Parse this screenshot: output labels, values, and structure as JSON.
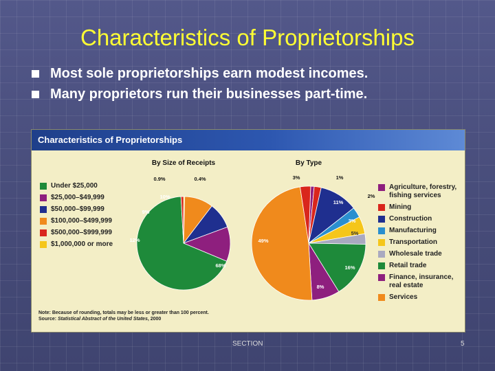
{
  "slide": {
    "title": "Characteristics of Proprietorships",
    "bullets": [
      "Most sole proprietorships earn modest incomes.",
      "Many proprietors run their businesses part-time."
    ],
    "footer_section": "SECTION",
    "footer_page": "5"
  },
  "figure": {
    "title": "Characteristics of Proprietorships",
    "note_line1": "Note: Because of rounding, totals may be less or greater than 100 percent.",
    "note_source_prefix": "Source: ",
    "note_source_title": "Statistical Abstract of the United States",
    "note_source_suffix": ", 2000"
  },
  "chart_data": [
    {
      "type": "pie",
      "title": "By Size of Receipts",
      "slices": [
        {
          "label": "Under $25,000",
          "value": 68,
          "display": "68%",
          "color": "#1e8a3a"
        },
        {
          "label": "$25,000–$49,999",
          "value": 12,
          "display": "12%",
          "color": "#8e1f7e"
        },
        {
          "label": "$50,000–$99,999",
          "value": 9,
          "display": "9%",
          "color": "#1f2f8f"
        },
        {
          "label": "$100,000–$499,999",
          "value": 10,
          "display": "10%",
          "color": "#f08a1c"
        },
        {
          "label": "$500,000–$999,999",
          "value": 0.9,
          "display": "0.9%",
          "color": "#d9261c"
        },
        {
          "label": "$1,000,000 or more",
          "value": 0.4,
          "display": "0.4%",
          "color": "#f5c61a"
        }
      ]
    },
    {
      "type": "pie",
      "title": "By Type",
      "slices": [
        {
          "label": "Agriculture, forestry, fishing services",
          "value": 1,
          "display": "1%",
          "color": "#8e1f7e"
        },
        {
          "label": "Mining",
          "value": 2,
          "display": "2%",
          "color": "#d9261c"
        },
        {
          "label": "Construction",
          "value": 11,
          "display": "11%",
          "color": "#1f2f8f"
        },
        {
          "label": "Manufacturing",
          "value": 3,
          "display": "3%",
          "color": "#2a8fcf"
        },
        {
          "label": "Transportation",
          "value": 5,
          "display": "5%",
          "color": "#f5c61a"
        },
        {
          "label": "Wholesale trade",
          "value": 3,
          "display": "3%",
          "color": "#a9a9c0"
        },
        {
          "label": "Retail trade",
          "value": 16,
          "display": "16%",
          "color": "#1e8a3a"
        },
        {
          "label": "Finance, insurance, real estate",
          "value": 8,
          "display": "8%",
          "color": "#8e1f7e"
        },
        {
          "label": "Services",
          "value": 49,
          "display": "49%",
          "color": "#f08a1c"
        },
        {
          "label": "",
          "value": 3,
          "display": "3%",
          "color": "#d9261c"
        }
      ]
    }
  ],
  "legend_left": [
    {
      "label": "Under $25,000",
      "color": "#1e8a3a"
    },
    {
      "label": "$25,000–$49,999",
      "color": "#8e1f7e"
    },
    {
      "label": "$50,000–$99,999",
      "color": "#1f2f8f"
    },
    {
      "label": "$100,000–$499,999",
      "color": "#f08a1c"
    },
    {
      "label": "$500,000–$999,999",
      "color": "#d9261c"
    },
    {
      "label": "$1,000,000 or more",
      "color": "#f5c61a"
    }
  ],
  "legend_right": [
    {
      "label": "Agriculture, forestry, fishing services",
      "color": "#8e1f7e"
    },
    {
      "label": "Mining",
      "color": "#d9261c"
    },
    {
      "label": "Construction",
      "color": "#1f2f8f"
    },
    {
      "label": "Manufacturing",
      "color": "#2a8fcf"
    },
    {
      "label": "Transportation",
      "color": "#f5c61a"
    },
    {
      "label": "Wholesale trade",
      "color": "#a9a9c0"
    },
    {
      "label": "Retail trade",
      "color": "#1e8a3a"
    },
    {
      "label": "Finance, insurance, real estate",
      "color": "#8e1f7e"
    },
    {
      "label": "Services",
      "color": "#f08a1c"
    }
  ]
}
